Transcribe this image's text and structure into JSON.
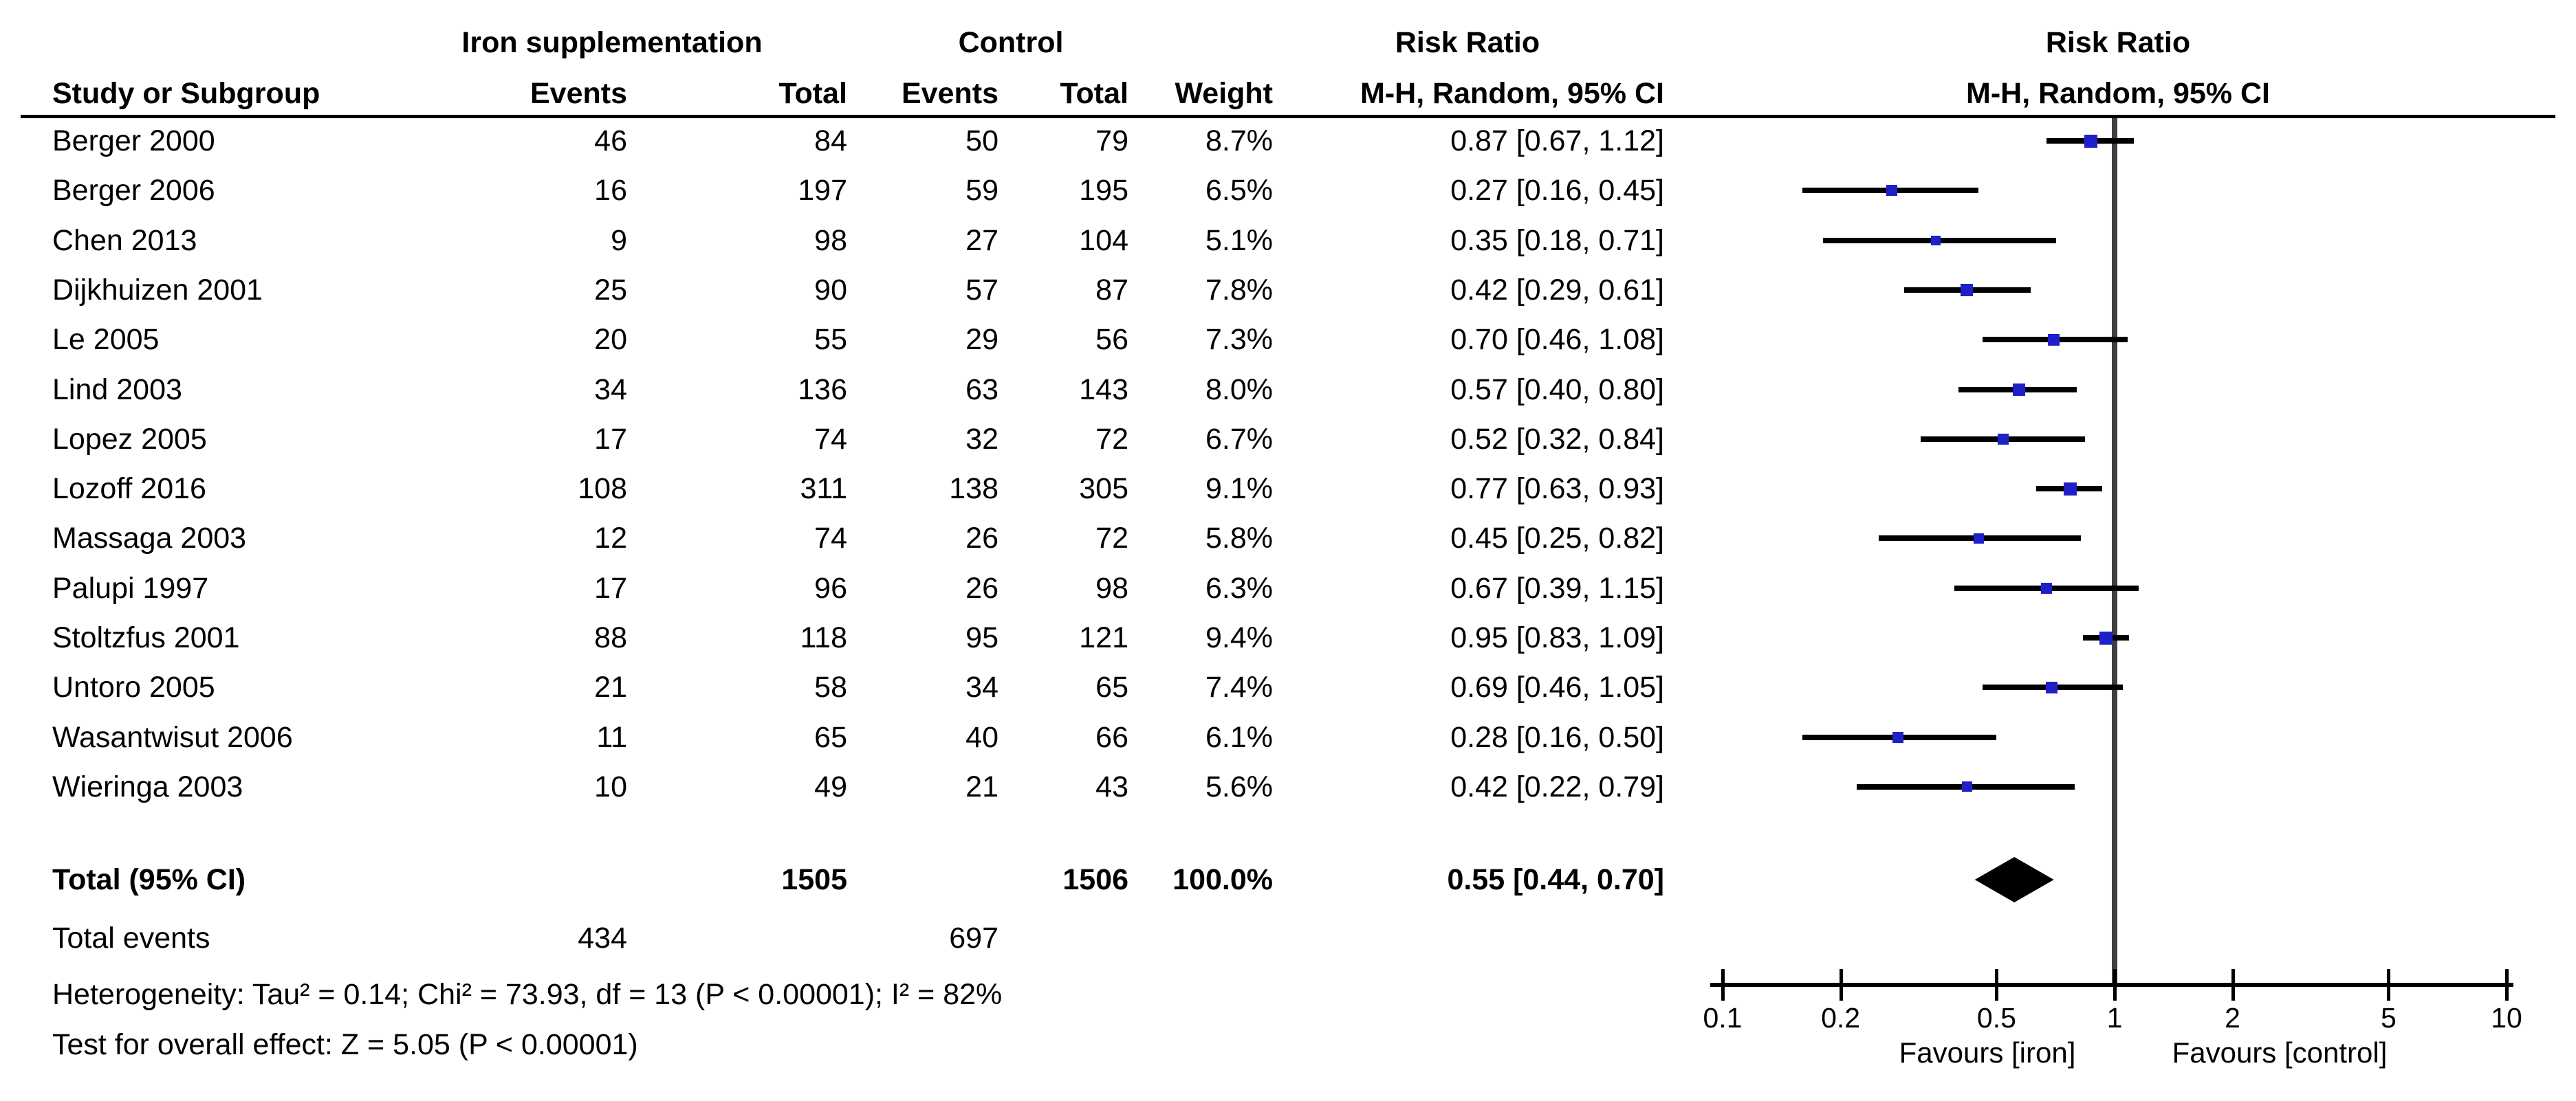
{
  "header": {
    "group_iron": "Iron supplementation",
    "group_control": "Control",
    "group_rr_text": "Risk Ratio",
    "group_rr_plot": "Risk Ratio",
    "study": "Study or Subgroup",
    "iron_events": "Events",
    "iron_total": "Total",
    "control_events": "Events",
    "control_total": "Total",
    "weight": "Weight",
    "mh_text": "M-H, Random, 95% CI",
    "mh_plot": "M-H, Random, 95% CI"
  },
  "chart_data": {
    "type": "scatter",
    "subtype": "forest-plot-risk-ratio",
    "x_scale": "log10",
    "x_range": [
      0.1,
      10
    ],
    "x_ticks": [
      "0.1",
      "0.2",
      "0.5",
      "1",
      "2",
      "5",
      "10"
    ],
    "legend_left": "Favours [iron]",
    "legend_right": "Favours [control]",
    "marker_color": "#2020C8",
    "ci_line_color": "#000000",
    "null_line_color": "#3f3f3f",
    "diamond_color": "#000000",
    "studies": [
      {
        "name": "Berger 2000",
        "iron_events": 46,
        "iron_total": 84,
        "ctrl_events": 50,
        "ctrl_total": 79,
        "weight_label": "8.7%",
        "weight": 8.7,
        "rr": 0.87,
        "lo": 0.67,
        "hi": 1.12,
        "ci_label": "0.87 [0.67, 1.12]"
      },
      {
        "name": "Berger 2006",
        "iron_events": 16,
        "iron_total": 197,
        "ctrl_events": 59,
        "ctrl_total": 195,
        "weight_label": "6.5%",
        "weight": 6.5,
        "rr": 0.27,
        "lo": 0.16,
        "hi": 0.45,
        "ci_label": "0.27 [0.16, 0.45]"
      },
      {
        "name": "Chen 2013",
        "iron_events": 9,
        "iron_total": 98,
        "ctrl_events": 27,
        "ctrl_total": 104,
        "weight_label": "5.1%",
        "weight": 5.1,
        "rr": 0.35,
        "lo": 0.18,
        "hi": 0.71,
        "ci_label": "0.35 [0.18, 0.71]"
      },
      {
        "name": "Dijkhuizen 2001",
        "iron_events": 25,
        "iron_total": 90,
        "ctrl_events": 57,
        "ctrl_total": 87,
        "weight_label": "7.8%",
        "weight": 7.8,
        "rr": 0.42,
        "lo": 0.29,
        "hi": 0.61,
        "ci_label": "0.42 [0.29, 0.61]"
      },
      {
        "name": "Le 2005",
        "iron_events": 20,
        "iron_total": 55,
        "ctrl_events": 29,
        "ctrl_total": 56,
        "weight_label": "7.3%",
        "weight": 7.3,
        "rr": 0.7,
        "lo": 0.46,
        "hi": 1.08,
        "ci_label": "0.70 [0.46, 1.08]"
      },
      {
        "name": "Lind 2003",
        "iron_events": 34,
        "iron_total": 136,
        "ctrl_events": 63,
        "ctrl_total": 143,
        "weight_label": "8.0%",
        "weight": 8.0,
        "rr": 0.57,
        "lo": 0.4,
        "hi": 0.8,
        "ci_label": "0.57 [0.40, 0.80]"
      },
      {
        "name": "Lopez 2005",
        "iron_events": 17,
        "iron_total": 74,
        "ctrl_events": 32,
        "ctrl_total": 72,
        "weight_label": "6.7%",
        "weight": 6.7,
        "rr": 0.52,
        "lo": 0.32,
        "hi": 0.84,
        "ci_label": "0.52 [0.32, 0.84]"
      },
      {
        "name": "Lozoff 2016",
        "iron_events": 108,
        "iron_total": 311,
        "ctrl_events": 138,
        "ctrl_total": 305,
        "weight_label": "9.1%",
        "weight": 9.1,
        "rr": 0.77,
        "lo": 0.63,
        "hi": 0.93,
        "ci_label": "0.77 [0.63, 0.93]"
      },
      {
        "name": "Massaga 2003",
        "iron_events": 12,
        "iron_total": 74,
        "ctrl_events": 26,
        "ctrl_total": 72,
        "weight_label": "5.8%",
        "weight": 5.8,
        "rr": 0.45,
        "lo": 0.25,
        "hi": 0.82,
        "ci_label": "0.45 [0.25, 0.82]"
      },
      {
        "name": "Palupi 1997",
        "iron_events": 17,
        "iron_total": 96,
        "ctrl_events": 26,
        "ctrl_total": 98,
        "weight_label": "6.3%",
        "weight": 6.3,
        "rr": 0.67,
        "lo": 0.39,
        "hi": 1.15,
        "ci_label": "0.67 [0.39, 1.15]"
      },
      {
        "name": "Stoltzfus 2001",
        "iron_events": 88,
        "iron_total": 118,
        "ctrl_events": 95,
        "ctrl_total": 121,
        "weight_label": "9.4%",
        "weight": 9.4,
        "rr": 0.95,
        "lo": 0.83,
        "hi": 1.09,
        "ci_label": "0.95 [0.83, 1.09]"
      },
      {
        "name": "Untoro 2005",
        "iron_events": 21,
        "iron_total": 58,
        "ctrl_events": 34,
        "ctrl_total": 65,
        "weight_label": "7.4%",
        "weight": 7.4,
        "rr": 0.69,
        "lo": 0.46,
        "hi": 1.05,
        "ci_label": "0.69 [0.46, 1.05]"
      },
      {
        "name": "Wasantwisut 2006",
        "iron_events": 11,
        "iron_total": 65,
        "ctrl_events": 40,
        "ctrl_total": 66,
        "weight_label": "6.1%",
        "weight": 6.1,
        "rr": 0.28,
        "lo": 0.16,
        "hi": 0.5,
        "ci_label": "0.28 [0.16, 0.50]"
      },
      {
        "name": "Wieringa 2003",
        "iron_events": 10,
        "iron_total": 49,
        "ctrl_events": 21,
        "ctrl_total": 43,
        "weight_label": "5.6%",
        "weight": 5.6,
        "rr": 0.42,
        "lo": 0.22,
        "hi": 0.79,
        "ci_label": "0.42 [0.22, 0.79]"
      }
    ],
    "summary": {
      "label": "Total (95% CI)",
      "iron_total": 1505,
      "ctrl_total": 1506,
      "weight_label": "100.0%",
      "rr": 0.55,
      "lo": 0.44,
      "hi": 0.7,
      "ci_label": "0.55 [0.44, 0.70]"
    }
  },
  "footer": {
    "total_events_label": "Total events",
    "total_events_iron": 434,
    "total_events_control": 697,
    "heterogeneity": "Heterogeneity: Tau² = 0.14; Chi² = 73.93, df = 13 (P < 0.00001); I² = 82%",
    "overall_effect": "Test for overall effect: Z = 5.05 (P < 0.00001)"
  }
}
